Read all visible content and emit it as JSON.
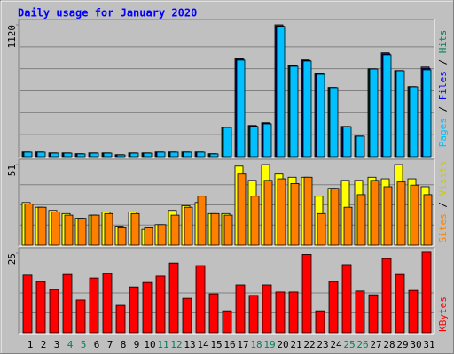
{
  "title": "Daily usage for January 2020",
  "chart_data": [
    {
      "type": "bar",
      "series": [
        {
          "name": "Hits",
          "color": "#00805C",
          "values": [
            40,
            40,
            32,
            32,
            25,
            32,
            32,
            17,
            32,
            32,
            40,
            40,
            40,
            40,
            25,
            250,
            835,
            265,
            288,
            1120,
            776,
            822,
            709,
            589,
            257,
            175,
            746,
            882,
            731,
            596,
            761
          ]
        },
        {
          "name": "Files",
          "color": "#0000FF",
          "values": [
            38,
            38,
            31,
            31,
            24,
            31,
            31,
            16,
            31,
            31,
            38,
            38,
            38,
            38,
            24,
            249,
            828,
            260,
            283,
            1110,
            771,
            817,
            703,
            588,
            256,
            174,
            745,
            873,
            730,
            595,
            749
          ]
        },
        {
          "name": "Pages",
          "color": "#00C0FF",
          "values": [
            38,
            38,
            30,
            30,
            23,
            30,
            30,
            15,
            30,
            30,
            38,
            38,
            38,
            38,
            23,
            248,
            820,
            255,
            278,
            1105,
            767,
            812,
            699,
            587,
            255,
            173,
            744,
            865,
            729,
            594,
            737
          ]
        }
      ],
      "ylim": [
        0,
        1120
      ],
      "yticks": [
        1120
      ]
    },
    {
      "type": "bar",
      "series": [
        {
          "name": "Visits",
          "color": "#FFFF00",
          "values": [
            27,
            24,
            22,
            20,
            17,
            19,
            21,
            12,
            21,
            10,
            13,
            22,
            25,
            27,
            20,
            20,
            50,
            41,
            51,
            45,
            43,
            43,
            31,
            36,
            41,
            41,
            43,
            42,
            51,
            42,
            37
          ]
        },
        {
          "name": "Sites",
          "color": "#FF8000",
          "values": [
            26,
            24,
            21,
            19,
            17,
            19,
            20,
            11,
            20,
            11,
            13,
            19,
            24,
            31,
            20,
            19,
            45,
            31,
            41,
            42,
            39,
            43,
            20,
            36,
            24,
            32,
            41,
            37,
            40,
            38,
            32
          ]
        }
      ],
      "ylim": [
        0,
        51
      ],
      "yticks": [
        51
      ]
    },
    {
      "type": "bar",
      "categories": [
        "1",
        "2",
        "3",
        "4",
        "5",
        "6",
        "7",
        "8",
        "9",
        "10",
        "11",
        "12",
        "13",
        "14",
        "15",
        "16",
        "17",
        "18",
        "19",
        "20",
        "21",
        "22",
        "23",
        "24",
        "25",
        "26",
        "27",
        "28",
        "29",
        "30",
        "31"
      ],
      "category_colors": [
        "#000000",
        "#000000",
        "#000000",
        "#00805C",
        "#00805C",
        "#000000",
        "#000000",
        "#000000",
        "#000000",
        "#000000",
        "#00805C",
        "#00805C",
        "#000000",
        "#000000",
        "#000000",
        "#000000",
        "#000000",
        "#00805C",
        "#00805C",
        "#000000",
        "#000000",
        "#000000",
        "#000000",
        "#000000",
        "#00805C",
        "#00805C",
        "#000000",
        "#000000",
        "#000000",
        "#000000",
        "#000000"
      ],
      "series": [
        {
          "name": "KBytes",
          "color": "#FF0000",
          "values": [
            18.1,
            16.1,
            13.6,
            18.3,
            10.3,
            17.2,
            18.6,
            8.6,
            14.4,
            15.8,
            17.8,
            21.9,
            10.8,
            21.1,
            12.2,
            6.9,
            15.0,
            11.7,
            15.0,
            12.8,
            12.8,
            24.6,
            6.9,
            16.1,
            21.4,
            13.1,
            11.9,
            23.3,
            18.3,
            13.3,
            25.3
          ]
        }
      ],
      "ylim": [
        0,
        25
      ],
      "yticks": [
        25
      ]
    }
  ]
}
